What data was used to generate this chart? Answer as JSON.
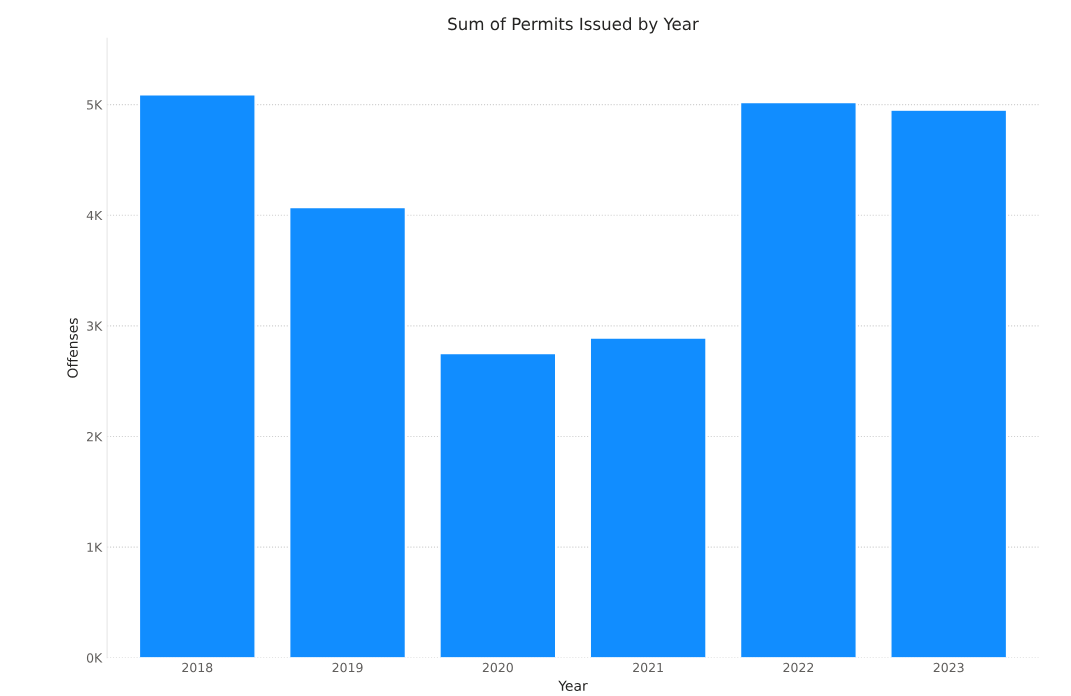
{
  "chart_data": {
    "type": "bar",
    "title": "Sum of Permits Issued by Year",
    "xlabel": "Year",
    "ylabel": "Offenses",
    "categories": [
      "2018",
      "2019",
      "2020",
      "2021",
      "2022",
      "2023"
    ],
    "series": [
      {
        "color": "#118dff",
        "values": [
          5090,
          4070,
          2750,
          2890,
          5020,
          4950
        ]
      }
    ],
    "yticks": [
      {
        "value": 0,
        "label": "0K"
      },
      {
        "value": 1000,
        "label": "1K"
      },
      {
        "value": 2000,
        "label": "2K"
      },
      {
        "value": 3000,
        "label": "3K"
      },
      {
        "value": 4000,
        "label": "4K"
      },
      {
        "value": 5000,
        "label": "5K"
      }
    ],
    "ylim": [
      0,
      5600
    ],
    "grid": "y"
  }
}
